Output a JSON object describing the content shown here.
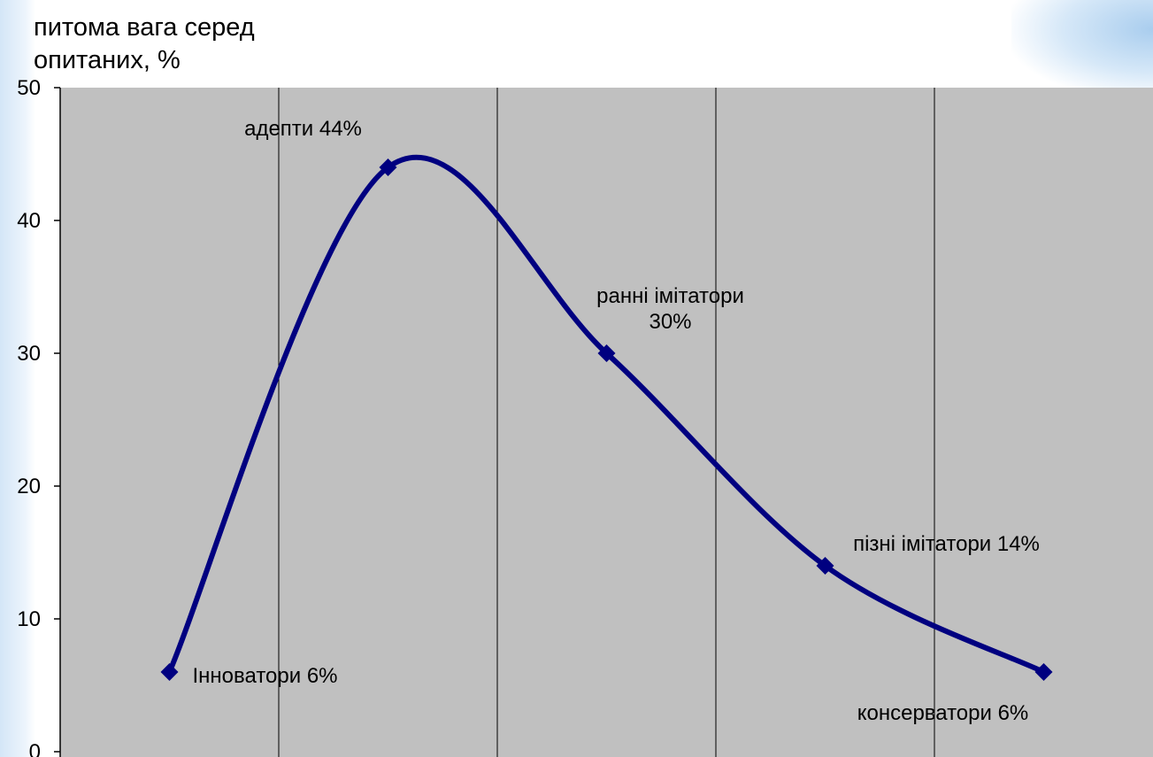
{
  "chart_data": {
    "type": "line",
    "title": "",
    "ylabel_lines": [
      "питома вага серед",
      "опитаних, %"
    ],
    "xlabel": "",
    "ylim": [
      0,
      50
    ],
    "yticks": [
      0,
      10,
      20,
      30,
      40,
      50
    ],
    "x": [
      0.5,
      1.5,
      2.5,
      3.5,
      4.5
    ],
    "xlim": [
      0,
      5
    ],
    "series": [
      {
        "values": [
          6,
          44,
          30,
          14,
          6
        ],
        "color": "#000080"
      }
    ],
    "data_labels": [
      {
        "lines": [
          "Інноватори 6%"
        ]
      },
      {
        "lines": [
          "адепти 44%"
        ]
      },
      {
        "lines": [
          "ранні імітатори",
          "30%"
        ]
      },
      {
        "lines": [
          "пізні імітатори 14%"
        ]
      },
      {
        "lines": [
          "консерватори 6%"
        ]
      }
    ],
    "smooth": true,
    "grid": {
      "vertical": true,
      "horizontal": false
    },
    "colors": {
      "plot_background": "#c0c0c0",
      "grid": "#000000",
      "line": "#000080"
    }
  }
}
